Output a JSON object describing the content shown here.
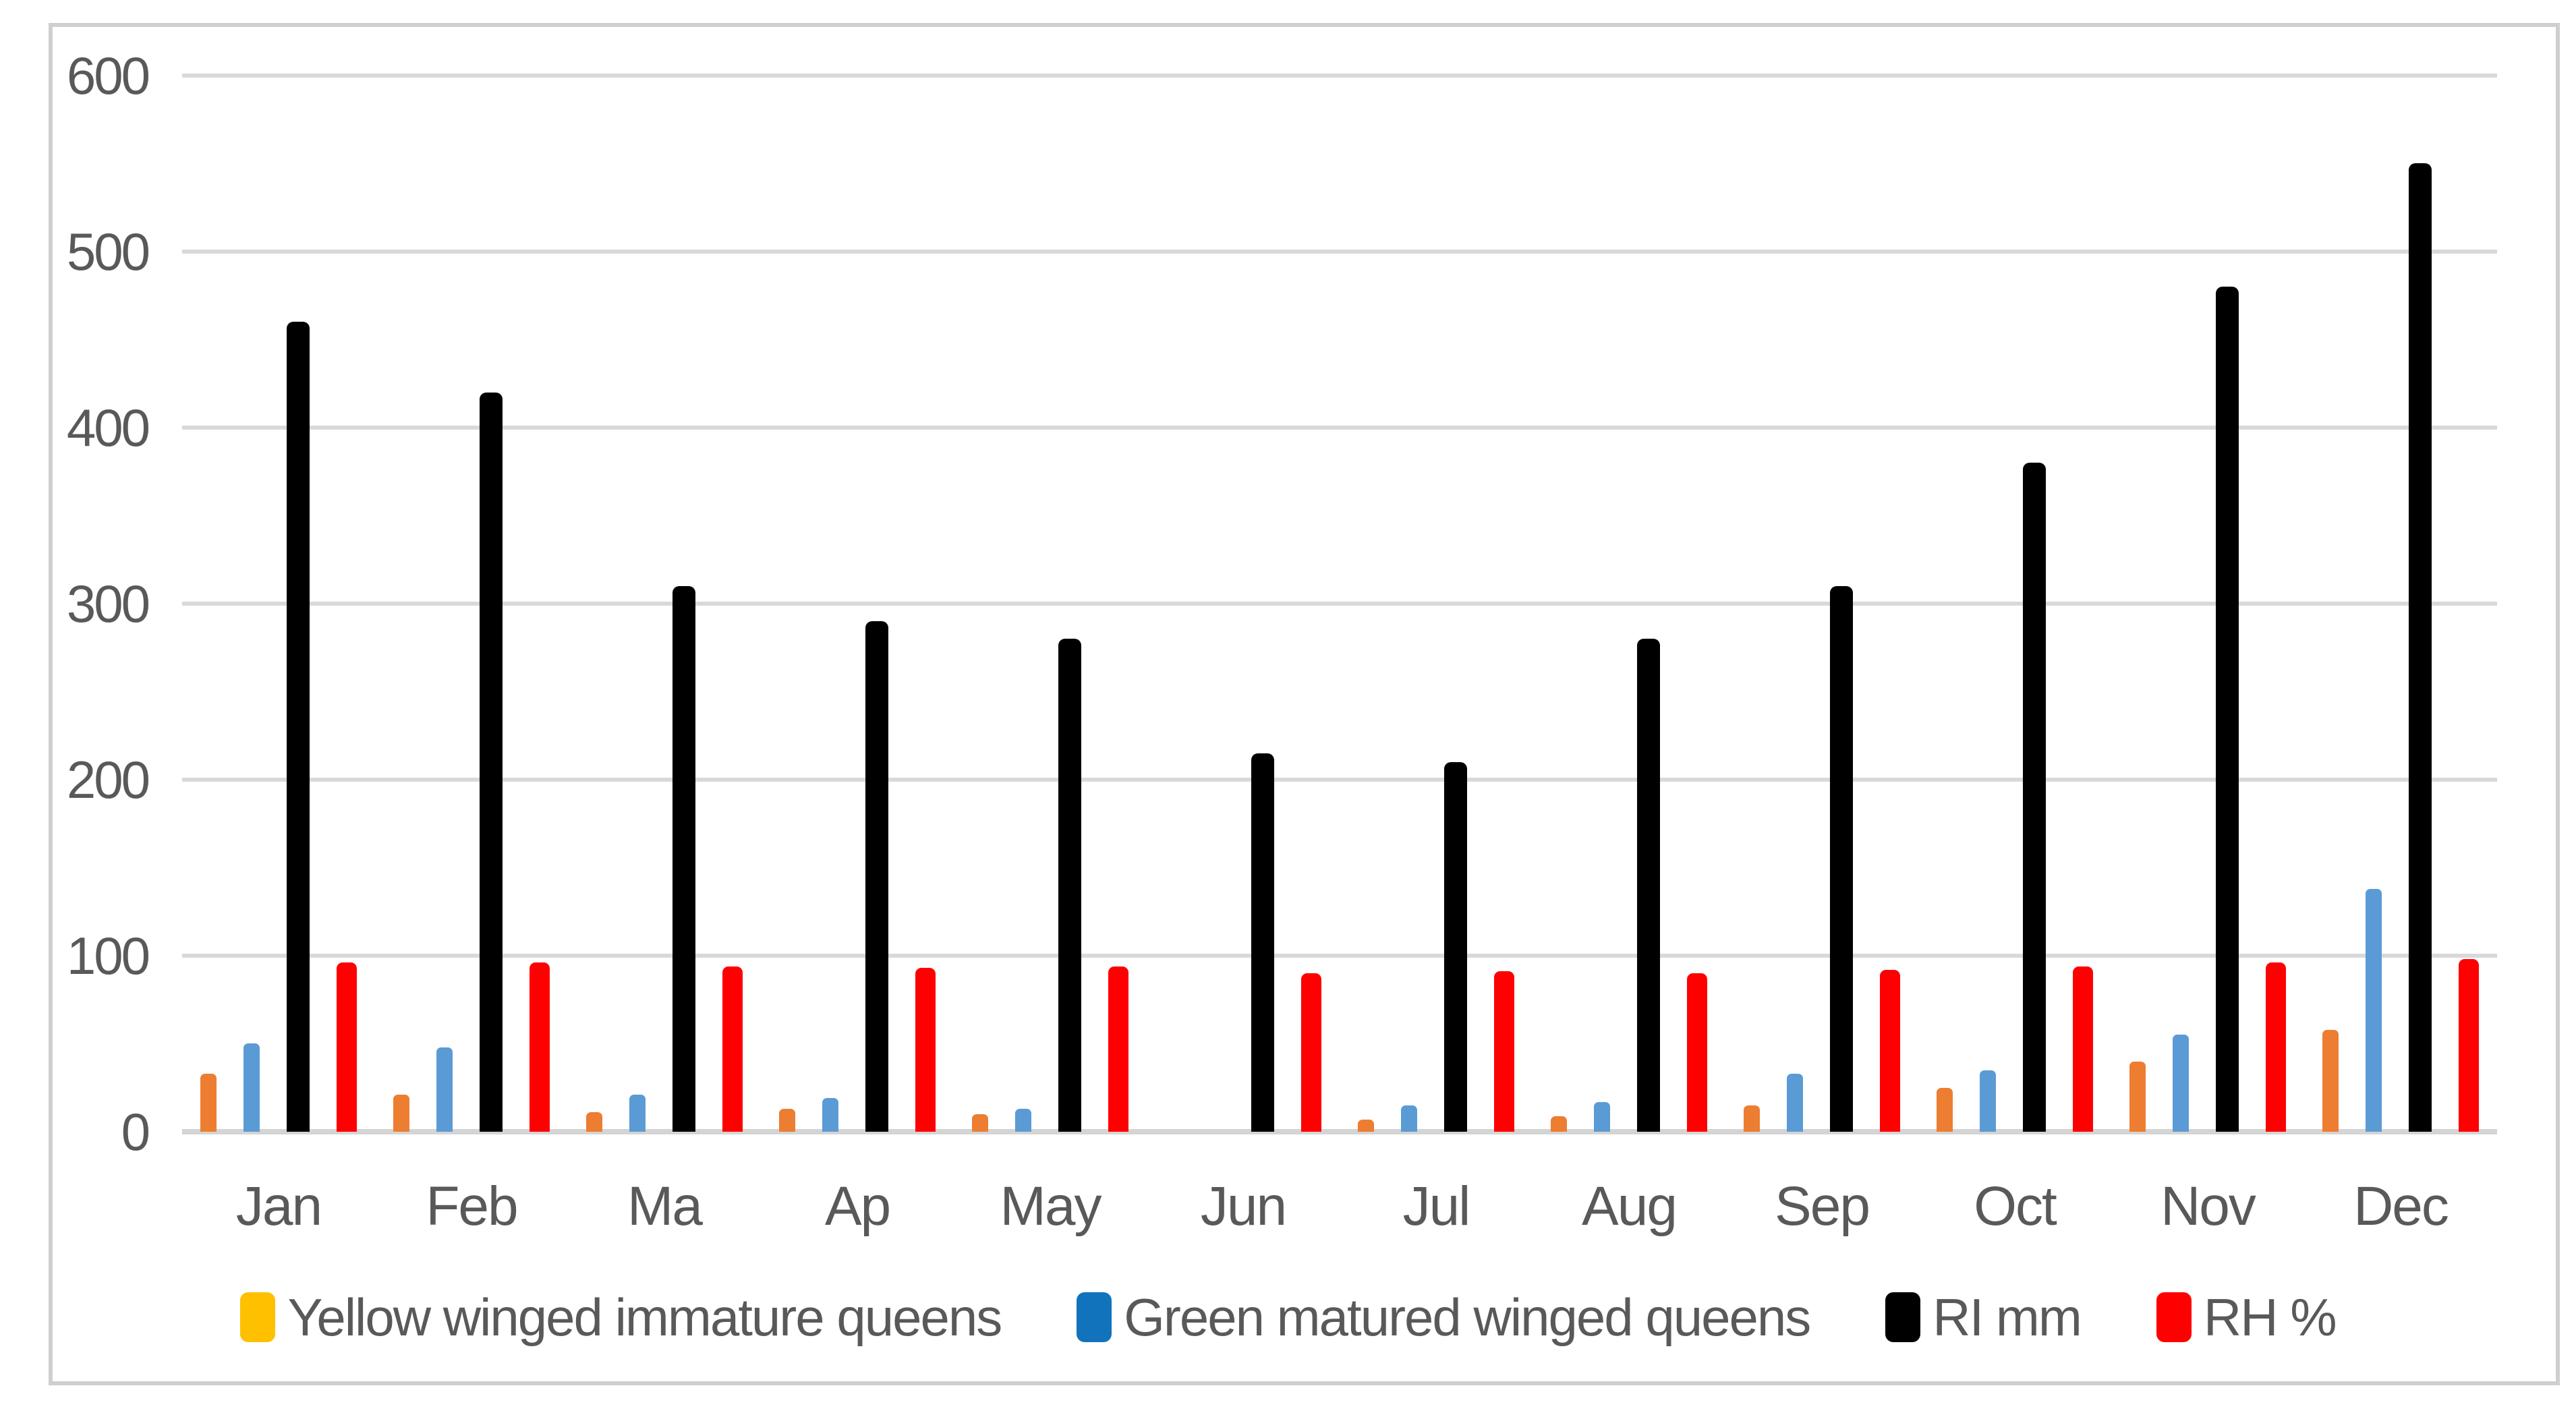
{
  "chart_data": {
    "type": "bar",
    "title": "",
    "categories": [
      "Jan",
      "Feb",
      "Ma",
      "Ap",
      "May",
      "Jun",
      "Jul",
      "Aug",
      "Sep",
      "Oct",
      "Nov",
      "Dec"
    ],
    "series": [
      {
        "name": "Yellow winged immature queens",
        "legend_color": "#FFC000",
        "bar_color": "#ED7D31",
        "values": [
          33,
          21,
          11,
          13,
          10,
          0,
          7,
          9,
          15,
          25,
          40,
          58
        ]
      },
      {
        "name": "Green matured winged queens",
        "legend_color": "#1273BD",
        "bar_color": "#5B9BD5",
        "values": [
          50,
          48,
          21,
          19,
          13,
          0,
          15,
          17,
          33,
          35,
          55,
          138
        ]
      },
      {
        "name": "RI mm",
        "legend_color": "#000000",
        "bar_color": "#000000",
        "values": [
          460,
          420,
          310,
          290,
          280,
          215,
          210,
          280,
          310,
          380,
          480,
          550
        ]
      },
      {
        "name": "RH %",
        "legend_color": "#FF0000",
        "bar_color": "#FF0000",
        "values": [
          96,
          96,
          94,
          93,
          94,
          90,
          91,
          90,
          92,
          94,
          96,
          98
        ]
      }
    ],
    "y_axis": {
      "min": 0,
      "max": 600,
      "step": 100,
      "tick_labels": [
        "0",
        "100",
        "200",
        "300",
        "400",
        "500",
        "600"
      ]
    },
    "grid": true,
    "legend_position": "bottom",
    "colors": {
      "background": "#FFFFFF",
      "gridline": "#D9D9D9",
      "axis_text": "#595959",
      "frame_border": "#CFCFCF"
    }
  }
}
